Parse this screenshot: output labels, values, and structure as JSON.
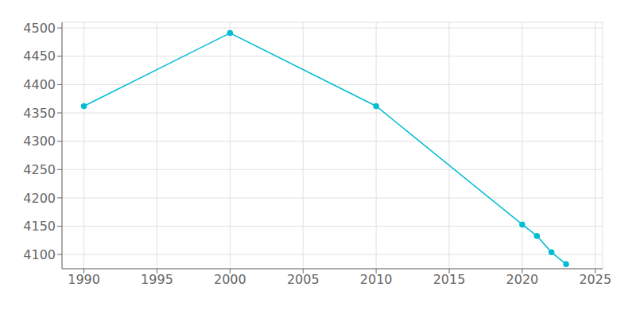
{
  "chart_data": {
    "type": "line",
    "x": [
      1990,
      2000,
      2010,
      2020,
      2021,
      2022,
      2023
    ],
    "values": [
      4362,
      4491,
      4362,
      4153,
      4133,
      4104,
      4083
    ],
    "color": "#00BCD4",
    "marker": "circle",
    "xlim": [
      1988.5,
      2025.5
    ],
    "ylim": [
      4075,
      4510
    ],
    "xticks": [
      1990,
      1995,
      2000,
      2005,
      2010,
      2015,
      2020,
      2025
    ],
    "yticks": [
      4100,
      4150,
      4200,
      4250,
      4300,
      4350,
      4400,
      4450,
      4500
    ],
    "grid": true
  }
}
